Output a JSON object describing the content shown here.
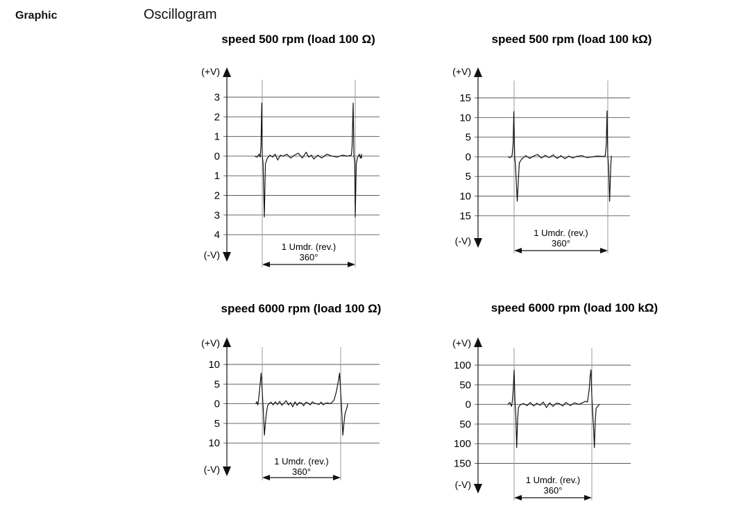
{
  "header": {
    "section_label": "Graphic",
    "title": "Oscillogram"
  },
  "colors": {
    "trace": "#111111",
    "grid": "#555555",
    "guide": "#999999"
  },
  "chart_data": [
    {
      "type": "line",
      "title": "speed 500 rpm (load 100 Ω)",
      "ylabel_top": "(+V)",
      "ylabel_bottom": "(-V)",
      "y_ticks": [
        3,
        2,
        1,
        0,
        -1,
        -2,
        -3,
        -4
      ],
      "y_tick_labels": [
        "3",
        "2",
        "1",
        "0",
        "1",
        "2",
        "3",
        "4"
      ],
      "ylim": [
        -4,
        3
      ],
      "rev_label": "1 Umdr. (rev.)",
      "deg_label": "360°",
      "xlim": [
        -30,
        480
      ],
      "x": [
        -30,
        -20,
        -12,
        -8,
        -5,
        -2,
        0,
        3,
        8,
        12,
        20,
        30,
        40,
        50,
        60,
        70,
        80,
        95,
        110,
        125,
        140,
        155,
        170,
        180,
        190,
        200,
        215,
        230,
        250,
        270,
        290,
        310,
        330,
        345,
        348,
        352,
        355,
        358,
        360,
        364,
        368,
        372,
        376,
        380,
        390,
        400,
        410,
        420,
        430,
        440,
        450,
        460
      ],
      "y": [
        0,
        -0.05,
        0.1,
        -0.05,
        0.5,
        2.7,
        0,
        -0.3,
        -3.1,
        -0.4,
        -0.1,
        0.05,
        -0.05,
        0.1,
        -0.2,
        0.05,
        0,
        0.1,
        -0.1,
        0.05,
        0.15,
        -0.1,
        0.2,
        -0.05,
        0.05,
        -0.15,
        0.05,
        -0.1,
        0.1,
        0,
        -0.05,
        0.05,
        0,
        0.05,
        0.5,
        2.7,
        0,
        -0.3,
        -3.1,
        -0.4,
        -0.1,
        0,
        0.1,
        -0.1,
        0.05,
        0,
        -0.05,
        0.1,
        0,
        0.05,
        -0.1,
        0
      ]
    },
    {
      "type": "line",
      "title": "speed 500 rpm (load 100 kΩ)",
      "ylabel_top": "(+V)",
      "ylabel_bottom": "(-V)",
      "y_ticks": [
        15,
        10,
        5,
        0,
        -5,
        -10,
        -15
      ],
      "y_tick_labels": [
        "15",
        "10",
        "5",
        "0",
        "5",
        "10",
        "15"
      ],
      "ylim": [
        -15,
        15
      ],
      "rev_label": "1 Umdr. (rev.)",
      "deg_label": "360°",
      "xlim": [
        -25,
        450
      ],
      "x": [
        -25,
        -15,
        -8,
        -4,
        -1,
        2,
        5,
        12,
        20,
        30,
        45,
        60,
        75,
        90,
        105,
        120,
        135,
        150,
        165,
        180,
        195,
        210,
        225,
        240,
        260,
        280,
        300,
        320,
        340,
        350,
        354,
        357,
        360,
        363,
        367,
        372,
        380,
        390,
        400,
        410,
        420,
        430,
        440,
        450
      ],
      "y": [
        0,
        -0.2,
        0.3,
        3,
        11.5,
        0,
        -2,
        -11.3,
        -1.5,
        -0.5,
        0.3,
        -0.4,
        0.2,
        0.6,
        -0.3,
        0.4,
        -0.2,
        0.5,
        -0.4,
        0.3,
        -0.5,
        0.2,
        -0.3,
        0.1,
        0.3,
        -0.2,
        0,
        0.2,
        0.1,
        0.2,
        3,
        11.7,
        0,
        -2,
        -11.3,
        -1.5,
        -0.3,
        0.2,
        -0.1,
        0,
        0.1,
        -0.1,
        0,
        0
      ]
    },
    {
      "type": "line",
      "title": "speed 6000 rpm (load 100 Ω)",
      "ylabel_top": "(+V)",
      "ylabel_bottom": "(-V)",
      "y_ticks": [
        10,
        5,
        0,
        -5,
        -10
      ],
      "y_tick_labels": [
        "10",
        "5",
        "0",
        "5",
        "10"
      ],
      "ylim": [
        -10,
        10
      ],
      "rev_label": "1 Umdr. (rev.)",
      "deg_label": "360°",
      "xlim": [
        -30,
        420
      ],
      "x": [
        -30,
        -25,
        -20,
        -15,
        -10,
        -5,
        0,
        5,
        10,
        15,
        20,
        25,
        30,
        40,
        50,
        60,
        70,
        80,
        90,
        100,
        110,
        120,
        130,
        140,
        150,
        160,
        170,
        180,
        190,
        200,
        210,
        220,
        230,
        240,
        250,
        260,
        270,
        280,
        290,
        300,
        310,
        320,
        330,
        340,
        350,
        355,
        360,
        365,
        370,
        375,
        380,
        390,
        400,
        410,
        420
      ],
      "y": [
        0,
        0.5,
        -0.3,
        2,
        5,
        7.8,
        3,
        -2,
        -8,
        -4.5,
        -2,
        -0.5,
        0,
        0.4,
        -0.3,
        0.5,
        -0.2,
        0.6,
        -0.4,
        0.2,
        0.8,
        -0.3,
        0.3,
        -0.8,
        0.5,
        -0.4,
        0.3,
        0.2,
        -0.5,
        0.4,
        0.2,
        -0.3,
        0.5,
        0.1,
        0,
        -0.2,
        0.4,
        -0.3,
        0.1,
        0.2,
        0,
        0.3,
        1,
        3,
        6,
        7.8,
        3,
        -2,
        -8,
        -5,
        -2.5,
        -0.8,
        0,
        0,
        0
      ]
    },
    {
      "type": "line",
      "title": "speed 6000 rpm (load 100 kΩ)",
      "ylabel_top": "(+V)",
      "ylabel_bottom": "(-V)",
      "y_ticks": [
        100,
        50,
        0,
        -50,
        -100,
        -150
      ],
      "y_tick_labels": [
        "100",
        "50",
        "0",
        "50",
        "100",
        "150"
      ],
      "ylim": [
        -150,
        100
      ],
      "rev_label": "1 Umdr. (rev.)",
      "deg_label": "360°",
      "xlim": [
        -30,
        420
      ],
      "x": [
        -30,
        -20,
        -12,
        -8,
        -4,
        0,
        4,
        8,
        12,
        16,
        20,
        30,
        45,
        60,
        75,
        90,
        105,
        120,
        135,
        150,
        165,
        180,
        195,
        210,
        225,
        240,
        260,
        280,
        300,
        320,
        330,
        340,
        348,
        352,
        356,
        360,
        364,
        368,
        372,
        376,
        380,
        390,
        400,
        410,
        420
      ],
      "y": [
        0,
        5,
        -5,
        10,
        40,
        88,
        10,
        -30,
        -110,
        -40,
        -8,
        0,
        2,
        -3,
        5,
        -4,
        3,
        -2,
        6,
        -8,
        4,
        -5,
        3,
        2,
        -4,
        5,
        -3,
        4,
        0,
        5,
        8,
        6,
        40,
        70,
        88,
        20,
        -20,
        -60,
        -110,
        -40,
        -10,
        -3,
        0,
        0,
        0
      ]
    }
  ]
}
